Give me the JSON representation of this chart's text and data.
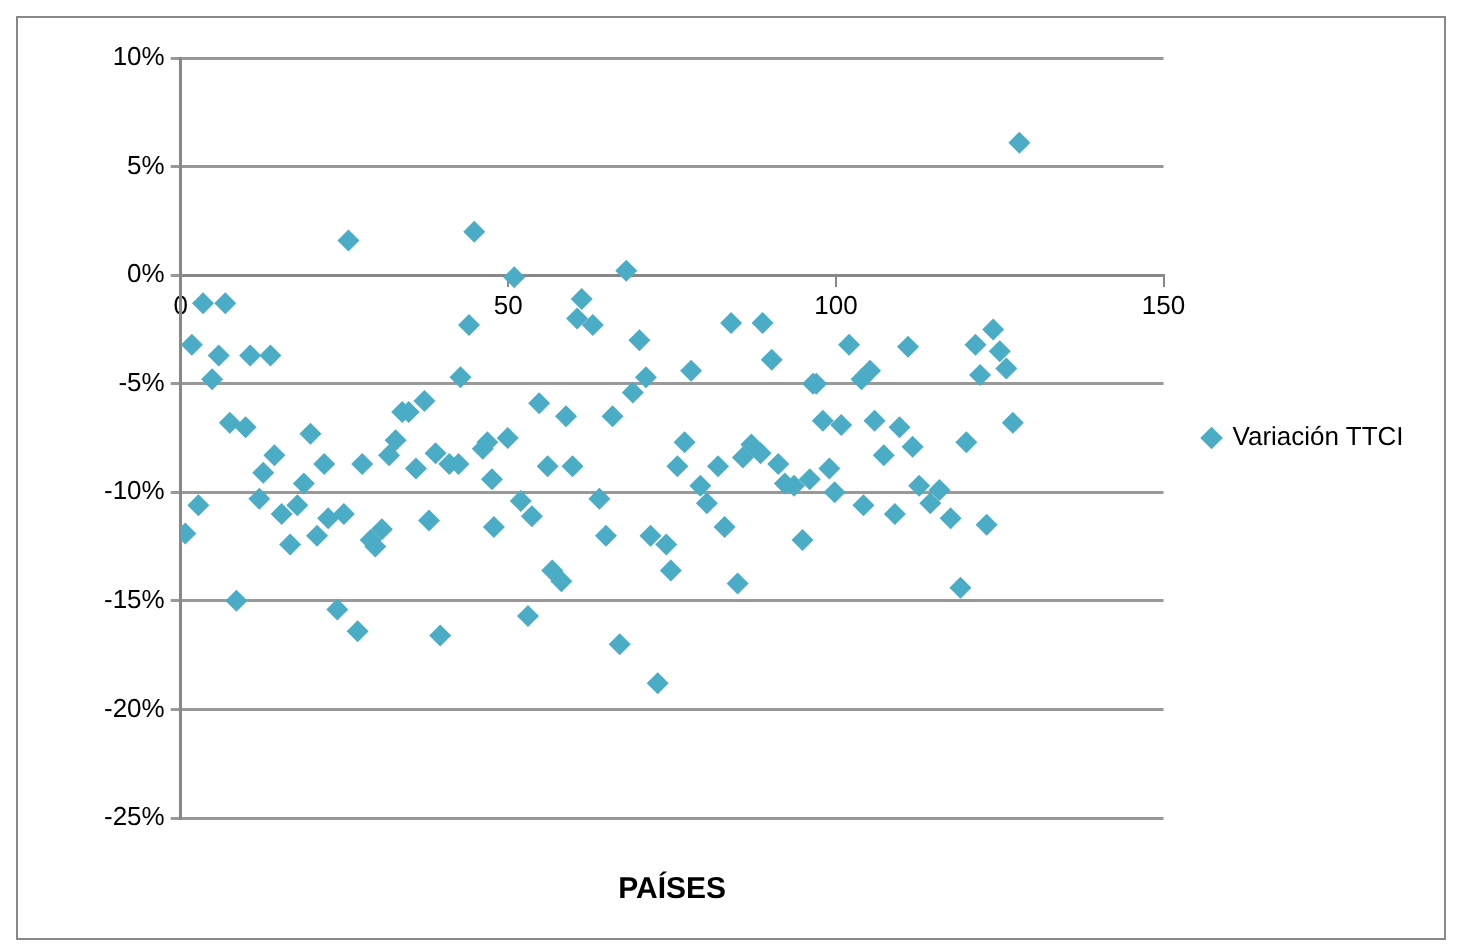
{
  "chart_data": {
    "type": "scatter",
    "xlabel": "PAÍSES",
    "xlim": [
      0,
      150
    ],
    "xticks": [
      0,
      50,
      100,
      150
    ],
    "ylim": [
      -25,
      10
    ],
    "yticks": [
      {
        "value": 10,
        "label": "10%"
      },
      {
        "value": 5,
        "label": "5%"
      },
      {
        "value": 0,
        "label": "0%"
      },
      {
        "value": -5,
        "label": "-5%"
      },
      {
        "value": -10,
        "label": "-10%"
      },
      {
        "value": -15,
        "label": "-15%"
      },
      {
        "value": -20,
        "label": "-20%"
      },
      {
        "value": -25,
        "label": "-25%"
      }
    ],
    "grid": "y",
    "legend": "right",
    "marker": "diamond",
    "series": [
      {
        "name": "Variación TTCI",
        "color": "#4bacc6",
        "x": [
          0.7,
          1.7,
          2.7,
          3.4,
          4.8,
          5.8,
          6.8,
          7.5,
          8.5,
          9.9,
          10.6,
          12,
          12.6,
          13.7,
          14.3,
          15.4,
          16.7,
          17.8,
          18.8,
          19.8,
          20.8,
          21.9,
          22.5,
          23.9,
          24.9,
          25.6,
          27,
          27.7,
          29,
          29.7,
          30.7,
          31.8,
          32.8,
          33.8,
          34.8,
          35.9,
          37.2,
          37.9,
          38.9,
          39.6,
          41,
          42.4,
          42.7,
          44,
          44.8,
          46.1,
          46.8,
          47.5,
          47.8,
          49.9,
          50.9,
          51.9,
          53,
          53.6,
          54.7,
          56,
          56.7,
          58.1,
          58.8,
          59.8,
          60.5,
          61.2,
          62.9,
          63.9,
          64.9,
          65.9,
          67,
          68,
          69,
          70,
          71,
          71.7,
          72.8,
          74.1,
          74.8,
          75.8,
          76.9,
          77.9,
          79.3,
          80.3,
          82,
          83,
          84,
          85,
          85.8,
          87.1,
          88.5,
          88.8,
          90.2,
          91.2,
          92.2,
          93.6,
          94.9,
          96,
          96.5,
          97,
          98,
          99,
          99.8,
          100.8,
          102,
          103.9,
          104.2,
          105.2,
          105.9,
          107.3,
          109,
          109.7,
          111,
          111.7,
          112.7,
          114.4,
          115.8,
          117.5,
          119,
          119.9,
          121.3,
          122,
          123,
          124,
          125,
          126,
          127,
          128
        ],
        "values": [
          -11.9,
          -3.2,
          -10.6,
          -1.3,
          -4.8,
          -3.7,
          -1.3,
          -6.8,
          -15,
          -7,
          -3.7,
          -10.3,
          -9.1,
          -3.7,
          -8.3,
          -11,
          -12.4,
          -10.6,
          -9.6,
          -7.3,
          -12,
          -8.7,
          -11.2,
          -15.4,
          -11,
          1.6,
          -16.4,
          -8.7,
          -12.2,
          -12.5,
          -11.7,
          -8.3,
          -7.6,
          -6.3,
          -6.3,
          -8.9,
          -5.8,
          -11.3,
          -8.2,
          -16.6,
          -8.7,
          -8.7,
          -4.7,
          -2.3,
          2,
          -8,
          -7.7,
          -9.4,
          -11.6,
          -7.5,
          -0.1,
          -10.4,
          -15.7,
          -11.1,
          -5.9,
          -8.8,
          -13.6,
          -14.1,
          -6.5,
          -8.8,
          -2,
          -1.1,
          -2.3,
          -10.3,
          -12,
          -6.5,
          -17,
          0.2,
          -5.4,
          -3,
          -4.7,
          -12,
          -18.8,
          -12.4,
          -13.6,
          -8.8,
          -7.7,
          -4.4,
          -9.7,
          -10.5,
          -8.8,
          -11.6,
          -2.2,
          -14.2,
          -8.4,
          -7.8,
          -8.2,
          -2.2,
          -3.9,
          -8.7,
          -9.6,
          -9.7,
          -12.2,
          -9.4,
          -5,
          -5,
          -6.7,
          -8.9,
          -10,
          -6.9,
          -3.2,
          -4.8,
          -10.6,
          -4.4,
          -6.7,
          -8.3,
          -11,
          -7,
          -3.3,
          -7.9,
          -9.7,
          -10.5,
          -9.9,
          -11.2,
          -14.4,
          -7.7,
          -3.2,
          -4.6,
          -11.5,
          -2.5,
          -3.5,
          -4.3,
          -6.8,
          6.1
        ]
      }
    ]
  }
}
